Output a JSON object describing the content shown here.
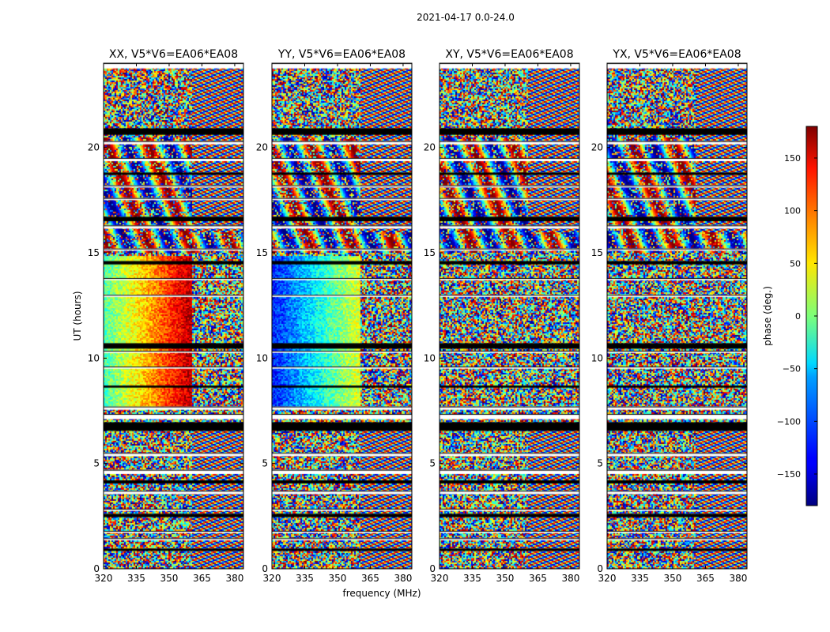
{
  "chart_data": {
    "type": "heatmap",
    "suptitle": "2021-04-17 0.0-24.0",
    "xlabel": "frequency (MHz)",
    "ylabel": "UT (hours)",
    "xlim": [
      320,
      384
    ],
    "ylim": [
      0,
      24
    ],
    "x_ticks": [
      320,
      335,
      350,
      365,
      380
    ],
    "y_ticks": [
      0,
      5,
      10,
      15,
      20
    ],
    "colorbar": {
      "label": "phase (deg.)",
      "range": [
        -180,
        180
      ],
      "ticks": [
        150,
        100,
        50,
        0,
        -50,
        -100,
        -150
      ],
      "colormap": "jet"
    },
    "panels": [
      {
        "title": "XX, V5*V6=EA06*EA08"
      },
      {
        "title": "YY, V5*V6=EA06*EA08"
      },
      {
        "title": "XY, V5*V6=EA06*EA08"
      },
      {
        "title": "YX, V5*V6=EA06*EA08"
      }
    ],
    "gap_bands_ut": [
      [
        24.0,
        23.75
      ],
      [
        20.9,
        20.6
      ],
      [
        20.3,
        20.15
      ],
      [
        19.5,
        19.35
      ],
      [
        18.8,
        18.7
      ],
      [
        18.2,
        18.1
      ],
      [
        17.6,
        17.5
      ],
      [
        16.7,
        16.5
      ],
      [
        16.3,
        16.15
      ],
      [
        15.2,
        15.1
      ],
      [
        14.6,
        14.45
      ],
      [
        13.8,
        13.7
      ],
      [
        13.0,
        12.9
      ],
      [
        10.7,
        10.45
      ],
      [
        10.35,
        10.25
      ],
      [
        9.6,
        9.5
      ],
      [
        8.7,
        8.6
      ],
      [
        7.7,
        7.55
      ],
      [
        7.35,
        7.1
      ],
      [
        6.95,
        6.55
      ],
      [
        5.5,
        5.35
      ],
      [
        4.7,
        4.5
      ],
      [
        4.2,
        4.05
      ],
      [
        3.7,
        3.55
      ],
      [
        2.85,
        2.75
      ],
      [
        2.6,
        2.45
      ],
      [
        1.8,
        1.7
      ],
      [
        1.45,
        1.35
      ],
      [
        0.95,
        0.85
      ]
    ]
  }
}
